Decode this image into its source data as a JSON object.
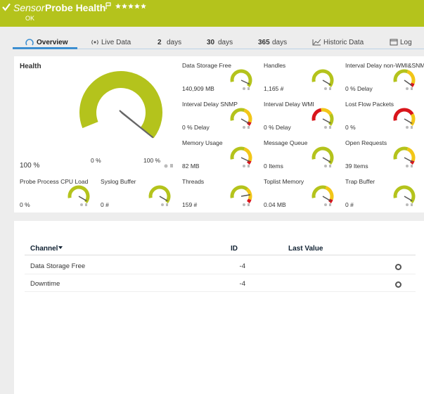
{
  "header": {
    "prefix": "Sensor",
    "title": "Probe Health",
    "status": "OK"
  },
  "tabs": [
    {
      "label": "Overview"
    },
    {
      "label": "Live Data"
    },
    {
      "number": 2,
      "unit": "days"
    },
    {
      "number": 30,
      "unit": "days"
    },
    {
      "number": 365,
      "unit": "days"
    },
    {
      "label": "Historic Data"
    },
    {
      "label": "Log"
    }
  ],
  "health": {
    "label": "Health",
    "value": "100 %",
    "min": "0 %",
    "max": "100 %"
  },
  "gauges": [
    {
      "name": "Data Storage Free",
      "value": "140,909 MB"
    },
    {
      "name": "Handles",
      "value": "1,165 #"
    },
    {
      "name": "Interval Delay non-WMI&SNMP",
      "value": "0 % Delay"
    },
    {
      "name": "Interval Delay SNMP",
      "value": "0 % Delay"
    },
    {
      "name": "Interval Delay WMI",
      "value": "0 % Delay"
    },
    {
      "name": "Lost Flow Packets",
      "value": "0 %"
    },
    {
      "name": "Memory Usage",
      "value": "82 MB"
    },
    {
      "name": "Message Queue",
      "value": "0 Items"
    },
    {
      "name": "Open Requests",
      "value": "39 Items"
    },
    {
      "name": "Probe Process CPU Load",
      "value": "0 %"
    },
    {
      "name": "Syslog Buffer",
      "value": "0 #"
    },
    {
      "name": "Threads",
      "value": "159 #"
    },
    {
      "name": "Toplist Memory",
      "value": "0.04 MB"
    },
    {
      "name": "Trap Buffer",
      "value": "0 #"
    }
  ],
  "table": {
    "columns": [
      "Channel",
      "ID",
      "Last Value"
    ],
    "rows": [
      [
        "Data Storage Free",
        -4,
        null
      ],
      [
        "Downtime",
        -4,
        null
      ]
    ]
  }
}
